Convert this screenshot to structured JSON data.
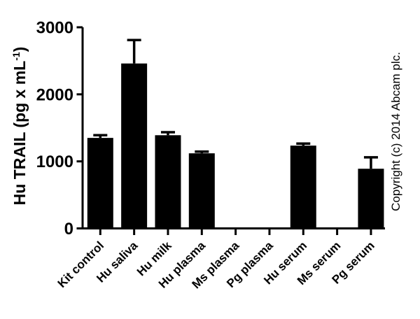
{
  "figure": {
    "background": "#ffffff",
    "foreground": "#000000"
  },
  "chart_data": {
    "type": "bar",
    "title": "",
    "categories": [
      "Kit control",
      "Hu saliva",
      "Hu milk",
      "Hu plasma",
      "Ms plasma",
      "Pg plasma",
      "Hu serum",
      "Ms serum",
      "Pg serum"
    ],
    "values": [
      1350,
      2460,
      1390,
      1120,
      0,
      0,
      1235,
      0,
      890
    ],
    "errors_plus": [
      40,
      350,
      45,
      25,
      0,
      0,
      30,
      0,
      170
    ],
    "ylabel": "Hu TRAIL (pg x mL-1)",
    "ylabel_prefix": "Hu TRAIL (pg x mL",
    "ylabel_sup": "-1",
    "ylabel_suffix": ")",
    "xlabel": "",
    "yticks": [
      0,
      1000,
      2000,
      3000
    ],
    "ylim": [
      0,
      3000
    ],
    "grid": false,
    "legend": "none",
    "bar_color": "#000000",
    "axis_color": "#000000",
    "error_bar_style": "caps-up-only",
    "x_label_rotation_deg": 45
  },
  "copyright": "Copyright (c) 2014 Abcam plc."
}
